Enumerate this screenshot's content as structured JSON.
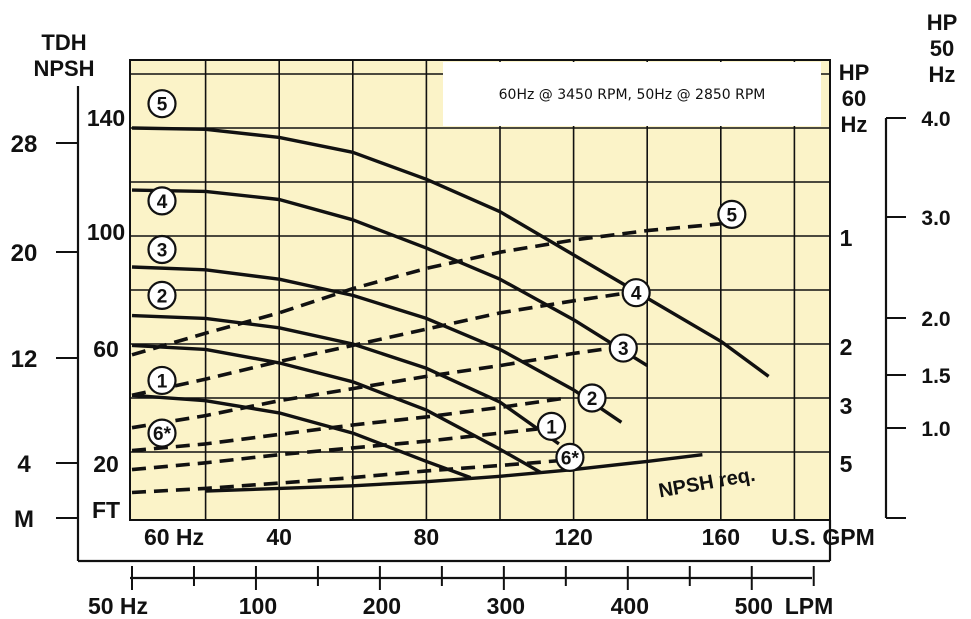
{
  "chart_data": {
    "type": "line",
    "subtitle": "60Hz @ 3450 RPM, 50Hz @ 2850 RPM",
    "colors": {
      "plot_bg": "#fbf3c8",
      "grid": "#111111",
      "line": "#111111",
      "box": "#ffffff"
    },
    "grid": true,
    "left_axes": {
      "tdh_title": [
        "TDH",
        "NPSH"
      ],
      "m_ticks": [
        "28",
        "20",
        "12",
        "4"
      ],
      "m_unit": "M",
      "ft_ticks": [
        "140",
        "100",
        "60",
        "20"
      ],
      "ft_unit": "FT"
    },
    "right_axes": {
      "hp60_title": [
        "HP",
        "60",
        "Hz"
      ],
      "hp60_ticks": [
        "5",
        "3",
        "2",
        "1"
      ],
      "hp50_title": [
        "HP",
        "50",
        "Hz"
      ],
      "hp50_ticks": [
        "4.0",
        "3.0",
        "2.0",
        "1.5",
        "1.0"
      ]
    },
    "bottom_axes": {
      "gpm_freq": "60 Hz",
      "gpm_ticks": [
        "40",
        "80",
        "120",
        "160"
      ],
      "gpm_unit": "U.S. GPM",
      "lpm_freq": "50 Hz",
      "lpm_ticks": [
        "100",
        "200",
        "300",
        "400",
        "500"
      ],
      "lpm_unit": "LPM"
    },
    "xlim_gpm": [
      0,
      170
    ],
    "ylim_ft": [
      0,
      160
    ],
    "hp60_scale": [
      [
        1,
        24.0
      ],
      [
        2,
        52.5
      ],
      [
        3,
        72.5
      ],
      [
        5,
        107.5
      ]
    ],
    "series": [
      {
        "name": "5",
        "kind": "head",
        "points": [
          [
            0,
            140
          ],
          [
            20,
            139.5
          ],
          [
            40,
            136.5
          ],
          [
            60,
            131
          ],
          [
            80,
            121
          ],
          [
            100,
            109
          ],
          [
            120,
            93
          ],
          [
            140,
            77
          ],
          [
            160,
            61
          ],
          [
            173,
            48
          ]
        ]
      },
      {
        "name": "4",
        "kind": "head",
        "points": [
          [
            0,
            117
          ],
          [
            20,
            116.5
          ],
          [
            40,
            113.5
          ],
          [
            60,
            106
          ],
          [
            80,
            95.5
          ],
          [
            100,
            84
          ],
          [
            120,
            69
          ],
          [
            140,
            52
          ]
        ]
      },
      {
        "name": "3",
        "kind": "head",
        "points": [
          [
            0,
            88.5
          ],
          [
            20,
            87.5
          ],
          [
            40,
            84
          ],
          [
            60,
            78
          ],
          [
            80,
            69.5
          ],
          [
            100,
            58
          ],
          [
            120,
            43
          ],
          [
            133,
            31
          ]
        ]
      },
      {
        "name": "2",
        "kind": "head",
        "points": [
          [
            0,
            70.5
          ],
          [
            20,
            69.5
          ],
          [
            40,
            66
          ],
          [
            60,
            60
          ],
          [
            80,
            51
          ],
          [
            100,
            38.5
          ],
          [
            116,
            23
          ]
        ]
      },
      {
        "name": "1",
        "kind": "head",
        "points": [
          [
            0,
            59.5
          ],
          [
            20,
            58
          ],
          [
            40,
            53
          ],
          [
            60,
            46
          ],
          [
            80,
            35.5
          ],
          [
            100,
            21
          ],
          [
            111,
            12.5
          ]
        ]
      },
      {
        "name": "6*",
        "kind": "head",
        "points": [
          [
            0,
            41
          ],
          [
            20,
            39
          ],
          [
            40,
            34.5
          ],
          [
            60,
            27
          ],
          [
            80,
            16.5
          ],
          [
            92,
            10.5
          ]
        ]
      },
      {
        "name": "5",
        "kind": "hp",
        "points": [
          [
            0,
            56
          ],
          [
            20,
            64
          ],
          [
            40,
            71.5
          ],
          [
            60,
            80.5
          ],
          [
            80,
            88
          ],
          [
            100,
            94
          ],
          [
            120,
            98.5
          ],
          [
            140,
            102
          ],
          [
            160,
            104.5
          ]
        ]
      },
      {
        "name": "4",
        "kind": "hp",
        "points": [
          [
            0,
            41
          ],
          [
            20,
            47
          ],
          [
            40,
            53.5
          ],
          [
            60,
            59.5
          ],
          [
            80,
            65.5
          ],
          [
            100,
            71.5
          ],
          [
            120,
            76
          ],
          [
            135,
            79
          ]
        ]
      },
      {
        "name": "3",
        "kind": "hp",
        "points": [
          [
            0,
            29
          ],
          [
            20,
            33.5
          ],
          [
            40,
            39
          ],
          [
            60,
            43.5
          ],
          [
            80,
            48
          ],
          [
            100,
            52
          ],
          [
            120,
            56.5
          ],
          [
            133,
            59
          ]
        ]
      },
      {
        "name": "2",
        "kind": "hp",
        "points": [
          [
            0,
            20.5
          ],
          [
            20,
            23
          ],
          [
            40,
            26.5
          ],
          [
            60,
            30
          ],
          [
            80,
            33
          ],
          [
            100,
            36.5
          ],
          [
            118,
            40
          ]
        ]
      },
      {
        "name": "1",
        "kind": "hp",
        "points": [
          [
            0,
            13.5
          ],
          [
            20,
            16
          ],
          [
            40,
            19
          ],
          [
            60,
            21.5
          ],
          [
            80,
            24
          ],
          [
            100,
            27
          ],
          [
            110,
            28.5
          ]
        ]
      },
      {
        "name": "6*",
        "kind": "hp",
        "points": [
          [
            0,
            5
          ],
          [
            20,
            6.5
          ],
          [
            40,
            8.5
          ],
          [
            60,
            10.5
          ],
          [
            80,
            13
          ],
          [
            100,
            15
          ],
          [
            118,
            17
          ]
        ]
      },
      {
        "name": "NPSH req.",
        "kind": "npsh",
        "points": [
          [
            20,
            5.5
          ],
          [
            40,
            6.5
          ],
          [
            60,
            7.5
          ],
          [
            80,
            9
          ],
          [
            100,
            11
          ],
          [
            120,
            13.5
          ],
          [
            140,
            16.5
          ],
          [
            155,
            19
          ]
        ]
      }
    ],
    "markers": [
      {
        "label": "5",
        "at": [
          0,
          149
        ]
      },
      {
        "label": "4",
        "at": [
          0,
          113
        ]
      },
      {
        "label": "3",
        "at": [
          0,
          95
        ]
      },
      {
        "label": "2",
        "at": [
          0,
          78
        ]
      },
      {
        "label": "1",
        "at": [
          0,
          46.5
        ]
      },
      {
        "label": "6*",
        "at": [
          0,
          27
        ]
      },
      {
        "label": "5",
        "at": [
          163,
          108
        ]
      },
      {
        "label": "4",
        "at": [
          137,
          79
        ]
      },
      {
        "label": "3",
        "at": [
          133.5,
          58.5
        ]
      },
      {
        "label": "2",
        "at": [
          125,
          40
        ]
      },
      {
        "label": "1",
        "at": [
          114,
          29.5
        ]
      },
      {
        "label": "6*",
        "at": [
          119,
          18
        ]
      }
    ],
    "npsh_label": "NPSH req."
  }
}
